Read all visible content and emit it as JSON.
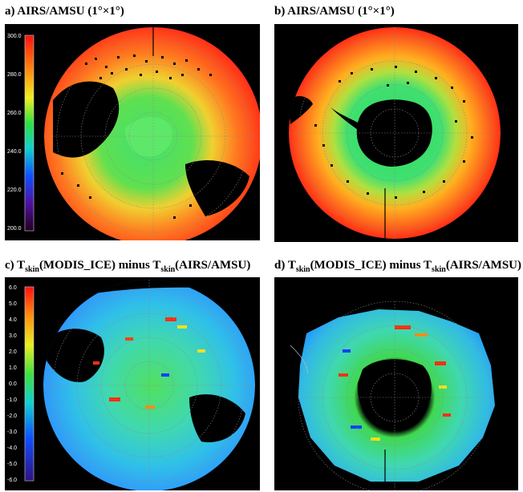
{
  "panels": [
    {
      "id": "a",
      "title": "a) AIRS/AMSU (1°×1°)",
      "colorbar": {
        "labels": [
          "300.0",
          "280.0",
          "260.0",
          "240.0",
          "220.0",
          "200.0"
        ]
      }
    },
    {
      "id": "b",
      "title": "b) AIRS/AMSU (1°×1°)"
    },
    {
      "id": "c",
      "title_parts": {
        "prefix": "c) T",
        "sub1": "skin",
        "mid": "(MODIS_ICE) minus T",
        "sub2": "skin",
        "suffix": "(AIRS/AMSU)"
      },
      "colorbar": {
        "labels": [
          "6.0",
          "5.0",
          "4.0",
          "3.0",
          "2.0",
          "1.0",
          "0.0",
          "-1.0",
          "-2.0",
          "-3.0",
          "-4.0",
          "-5.0",
          "-6.0"
        ]
      }
    },
    {
      "id": "d",
      "title_parts": {
        "prefix": "d) T",
        "sub1": "skin",
        "mid": "(MODIS_ICE) minus T",
        "sub2": "skin",
        "suffix": "(AIRS/AMSU)"
      }
    }
  ],
  "colors": {
    "background": "#000000",
    "warm": "#ff3a1a",
    "mid": "#f0a020",
    "cool_green": "#40e060",
    "cyan": "#30c8e0",
    "blue": "#2060ff",
    "graticule": "#9a9a9a"
  }
}
